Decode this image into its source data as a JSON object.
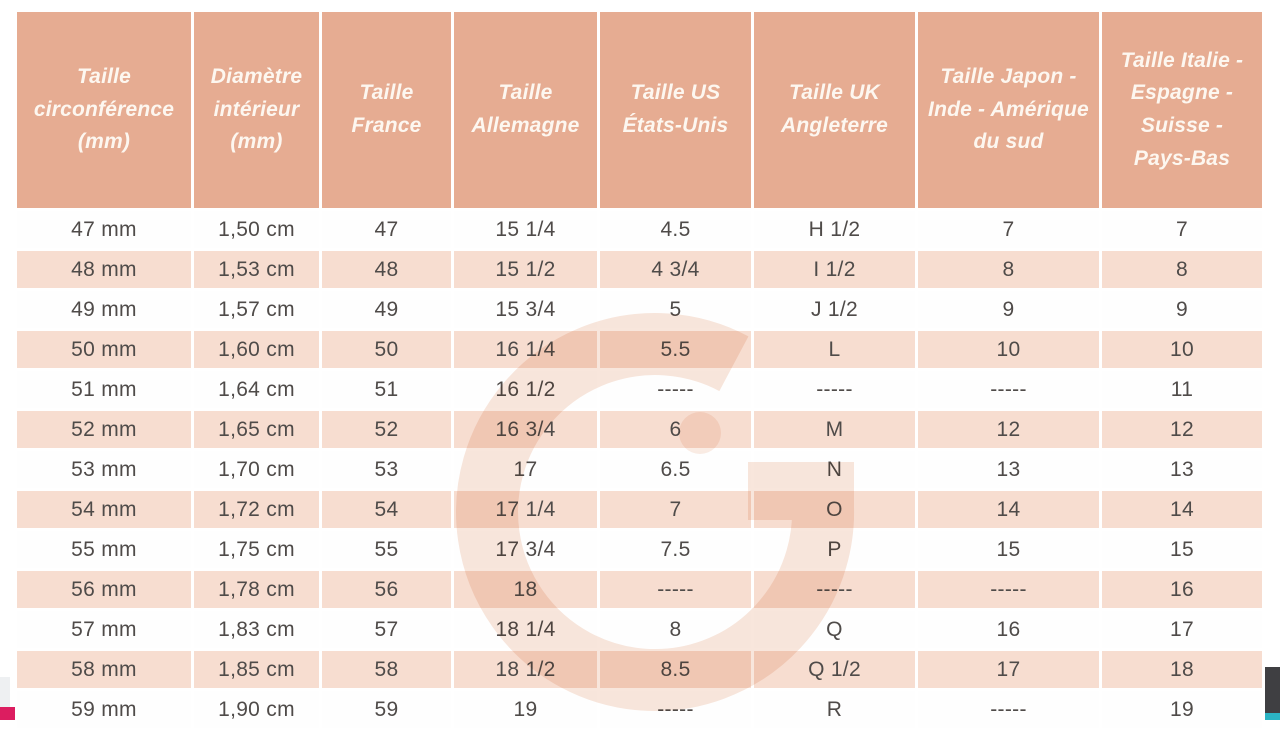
{
  "chart_data": {
    "type": "table",
    "columns": [
      "Taille circonférence (mm)",
      "Diamètre intérieur (mm)",
      "Taille France",
      "Taille Allemagne",
      "Taille US États-Unis",
      "Taille UK Angleterre",
      "Taille Japon - Inde - Amérique du sud",
      "Taille Italie - Espagne - Suisse - Pays-Bas"
    ],
    "rows": [
      [
        "47 mm",
        "1,50 cm",
        "47",
        "15 1/4",
        "4.5",
        "H 1/2",
        "7",
        "7"
      ],
      [
        "48 mm",
        "1,53 cm",
        "48",
        "15 1/2",
        "4 3/4",
        "I 1/2",
        "8",
        "8"
      ],
      [
        "49 mm",
        "1,57 cm",
        "49",
        "15 3/4",
        "5",
        "J 1/2",
        "9",
        "9"
      ],
      [
        "50 mm",
        "1,60 cm",
        "50",
        "16 1/4",
        "5.5",
        "L",
        "10",
        "10"
      ],
      [
        "51 mm",
        "1,64 cm",
        "51",
        "16 1/2",
        "-----",
        "-----",
        "-----",
        "11"
      ],
      [
        "52 mm",
        "1,65 cm",
        "52",
        "16 3/4",
        "6",
        "M",
        "12",
        "12"
      ],
      [
        "53 mm",
        "1,70 cm",
        "53",
        "17",
        "6.5",
        "N",
        "13",
        "13"
      ],
      [
        "54 mm",
        "1,72 cm",
        "54",
        "17 1/4",
        "7",
        "O",
        "14",
        "14"
      ],
      [
        "55 mm",
        "1,75 cm",
        "55",
        "17 3/4",
        "7.5",
        "P",
        "15",
        "15"
      ],
      [
        "56 mm",
        "1,78 cm",
        "56",
        "18",
        "-----",
        "-----",
        "-----",
        "16"
      ],
      [
        "57 mm",
        "1,83 cm",
        "57",
        "18 1/4",
        "8",
        "Q",
        "16",
        "17"
      ],
      [
        "58 mm",
        "1,85 cm",
        "58",
        "18 1/2",
        "8.5",
        "Q 1/2",
        "17",
        "18"
      ],
      [
        "59 mm",
        "1,90 cm",
        "59",
        "19",
        "-----",
        "R",
        "-----",
        "19"
      ]
    ]
  },
  "watermark": {
    "icon_name": "g-letter-watermark"
  },
  "colors": {
    "header-bg": "#e6ac92",
    "header-text": "#fdf7f0",
    "row-bg": "#fefefe",
    "row-alt-bg": "#f7ddd0",
    "cell-text": "#4f4b49",
    "watermark": "#f8e6dc",
    "accent-magenta": "#dc1d60",
    "accent-cyan": "#2bb3c3",
    "accent-dark": "#3f3f42",
    "accent-gray": "#eef0f2"
  }
}
